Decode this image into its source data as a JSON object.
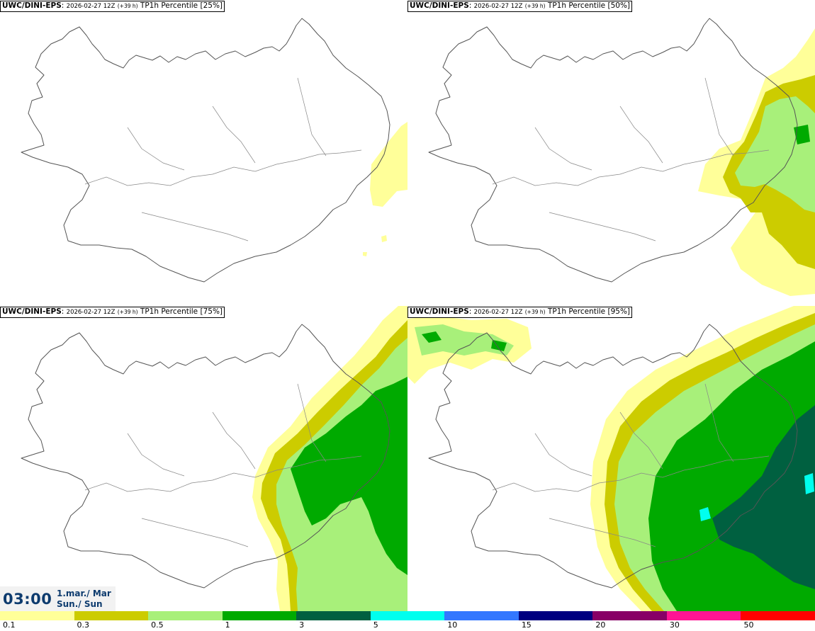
{
  "panels": [
    {
      "source": "UWC/DINI-EPS",
      "run": "2026-02-27 12Z",
      "lead": "(+39 h)",
      "field": "TP1h Percentile",
      "percentile": "[25%]"
    },
    {
      "source": "UWC/DINI-EPS",
      "run": "2026-02-27 12Z",
      "lead": "(+39 h)",
      "field": "TP1h Percentile",
      "percentile": "[50%]"
    },
    {
      "source": "UWC/DINI-EPS",
      "run": "2026-02-27 12Z",
      "lead": "(+39 h)",
      "field": "TP1h Percentile",
      "percentile": "[75%]"
    },
    {
      "source": "UWC/DINI-EPS",
      "run": "2026-02-27 12Z",
      "lead": "(+39 h)",
      "field": "TP1h Percentile",
      "percentile": "[95%]"
    }
  ],
  "valid_time": {
    "time": "03:00",
    "date_line1": "1.mar./ Mar",
    "date_line2": "Sun./ Sun"
  },
  "colorbar": {
    "labels": [
      "0.1",
      "0.3",
      "0.5",
      "1",
      "3",
      "5",
      "10",
      "15",
      "20",
      "30",
      "50"
    ],
    "colors": [
      "#ffff99",
      "#cccc00",
      "#a8f07a",
      "#00aa00",
      "#006040",
      "#00ffee",
      "#3377ff",
      "#000080",
      "#880066",
      "#ff1493",
      "#ff0000"
    ]
  }
}
